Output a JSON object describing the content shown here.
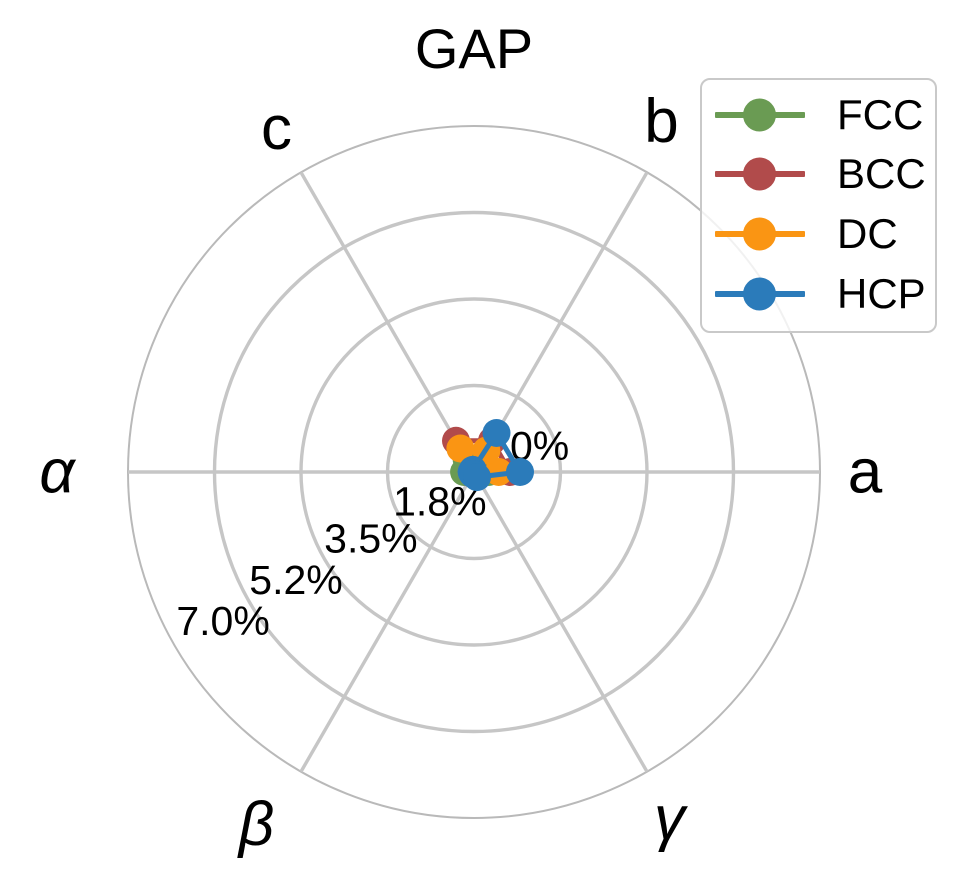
{
  "chart_data": {
    "type": "radar",
    "projection": "polar",
    "title": "GAP",
    "units": "%",
    "categories": [
      "a",
      "b",
      "c",
      "α",
      "β",
      "γ"
    ],
    "category_angles_deg": [
      0,
      60,
      120,
      180,
      240,
      300
    ],
    "series": [
      {
        "name": "FCC",
        "color": "#6a9b53",
        "values": [
          0.3,
          0.3,
          0.3,
          0.2,
          0.0,
          0.0
        ]
      },
      {
        "name": "BCC",
        "color": "#b14b4b",
        "values": [
          0.73,
          0.73,
          0.73,
          0.0,
          0.0,
          0.0
        ]
      },
      {
        "name": "DC",
        "color": "#fa9513",
        "values": [
          0.5,
          0.5,
          0.55,
          0.05,
          0.05,
          0.05
        ]
      },
      {
        "name": "HCP",
        "color": "#2b7bba",
        "values": [
          0.93,
          0.91,
          0.05,
          0.05,
          0.05,
          0.12
        ]
      }
    ],
    "r_ticks": [
      {
        "value": 0.0,
        "label": "0%"
      },
      {
        "value": 1.75,
        "label": "1.8%"
      },
      {
        "value": 3.5,
        "label": "3.5%"
      },
      {
        "value": 5.25,
        "label": "5.2%"
      },
      {
        "value": 7.0,
        "label": "7.0%"
      }
    ],
    "r_max": 7.0,
    "r_label_angle_deg": 210,
    "grid": true,
    "legend_position": "upper right",
    "colors": {
      "grid": "#c6c6c6",
      "boundary": "#b9b9b9",
      "text": "#000000",
      "background": "#ffffff",
      "legend_border": "#c9c9c9"
    }
  }
}
